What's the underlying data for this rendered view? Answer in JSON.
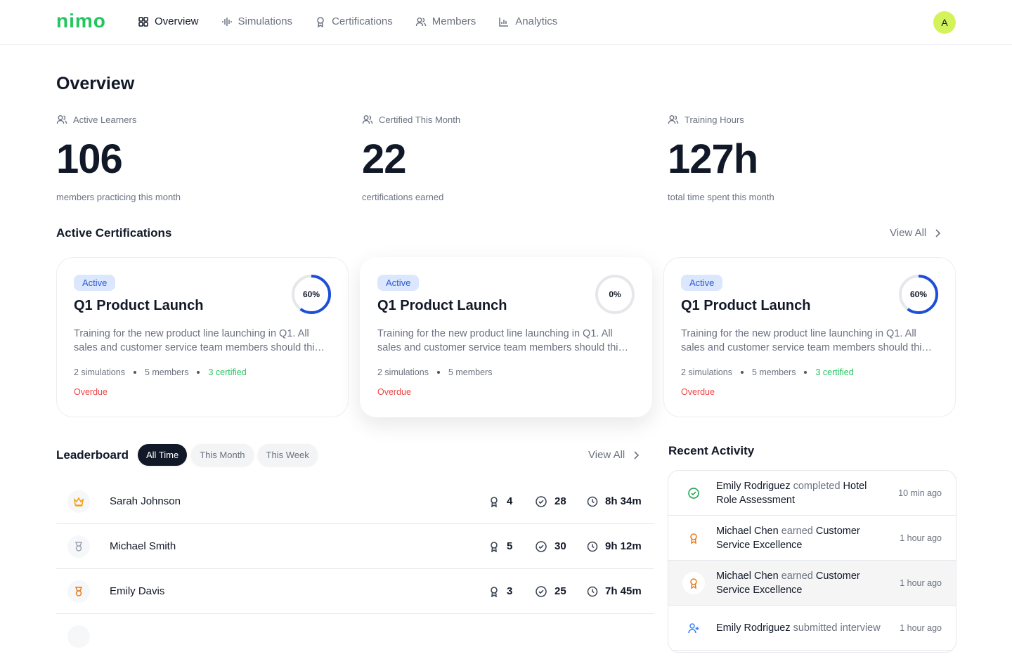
{
  "nav": {
    "logo": "nimo",
    "items": [
      "Overview",
      "Simulations",
      "Certifications",
      "Members",
      "Analytics"
    ],
    "avatar": "A"
  },
  "page_title": "Overview",
  "stats": [
    {
      "label": "Active Learners",
      "value": "106",
      "caption": "members practicing this month"
    },
    {
      "label": "Certified This Month",
      "value": "22",
      "caption": "certifications earned"
    },
    {
      "label": "Training Hours",
      "value": "127h",
      "caption": "total time spent this month"
    }
  ],
  "certifications": {
    "title": "Active Certifications",
    "view_all": "View All",
    "cards": [
      {
        "status": "Active",
        "progress": 60,
        "progress_label": "60%",
        "name": "Q1 Product Launch",
        "description": "Training for the new product line launching in Q1. All sales and customer service team members should thi…",
        "simulations": "2 simulations",
        "members": "5 members",
        "certified": "3 certified",
        "due": "Overdue"
      },
      {
        "status": "Active",
        "progress": 0,
        "progress_label": "0%",
        "name": "Q1 Product Launch",
        "description": "Training for the new product line launching in Q1. All sales and customer service team members should thi…",
        "simulations": "2 simulations",
        "members": "5 members",
        "due": "Overdue"
      },
      {
        "status": "Active",
        "progress": 60,
        "progress_label": "60%",
        "name": "Q1 Product Launch",
        "description": "Training for the new product line launching in Q1. All sales and customer service team members should thi…",
        "simulations": "2 simulations",
        "members": "5 members",
        "certified": "3 certified",
        "due": "Overdue"
      }
    ]
  },
  "leaderboard": {
    "title": "Leaderboard",
    "tabs": [
      "All Time",
      "This Month",
      "This Week"
    ],
    "view_all": "View All",
    "rows": [
      {
        "name": "Sarah Johnson",
        "certifications": 4,
        "simulations": 28,
        "time": "8h 34m"
      },
      {
        "name": "Michael Smith",
        "certifications": 5,
        "simulations": 30,
        "time": "9h 12m"
      },
      {
        "name": "Emily Davis",
        "certifications": 3,
        "simulations": 25,
        "time": "7h 45m"
      }
    ]
  },
  "activity": {
    "title": "Recent Activity",
    "items": [
      {
        "actor": "Emily Rodriguez",
        "verb": "completed",
        "object": "Hotel Role Assessment",
        "time": "10 min ago"
      },
      {
        "actor": "Michael Chen",
        "verb": "earned",
        "object": "Customer Service Excellence",
        "time": "1 hour ago"
      },
      {
        "actor": "Michael Chen",
        "verb": "earned",
        "object": "Customer Service Excellence",
        "time": "1 hour ago"
      },
      {
        "actor": "Emily Rodriguez",
        "verb": "submitted interview",
        "time": "1 hour ago"
      }
    ]
  }
}
